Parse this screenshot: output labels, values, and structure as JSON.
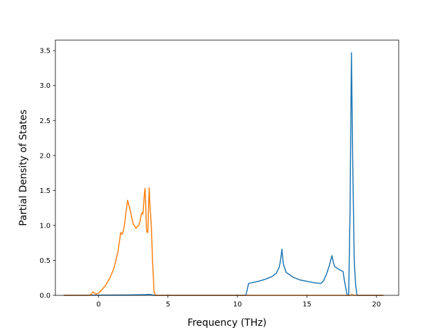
{
  "chart_data": {
    "type": "line",
    "title": "",
    "xlabel": "Frequency (THz)",
    "ylabel": "Partial Density of States",
    "xlim": [
      -3.1,
      21.6
    ],
    "ylim": [
      0,
      3.65
    ],
    "xticks": [
      0,
      5,
      10,
      15,
      20
    ],
    "xtick_labels": [
      "0",
      "5",
      "10",
      "15",
      "20"
    ],
    "yticks": [
      0,
      0.5,
      1.0,
      1.5,
      2.0,
      2.5,
      3.0,
      3.5
    ],
    "ytick_labels": [
      "0.0",
      "0.5",
      "1.0",
      "1.5",
      "2.0",
      "2.5",
      "3.0",
      "3.5"
    ],
    "grid": false,
    "legend": "none",
    "series": [
      {
        "color": "#1f77b4",
        "x": [
          -2.5,
          2.0,
          3.4,
          3.6,
          3.8,
          4.0,
          10.6,
          10.7,
          10.8,
          11.0,
          11.5,
          12.0,
          12.5,
          12.8,
          13.0,
          13.1,
          13.2,
          13.3,
          13.5,
          14.0,
          14.5,
          15.0,
          15.5,
          16.0,
          16.2,
          16.4,
          16.6,
          16.8,
          16.9,
          17.0,
          17.3,
          17.6,
          17.7,
          17.9,
          18.0,
          18.1,
          18.2,
          18.3,
          18.4,
          18.5,
          18.6,
          18.7,
          20.5
        ],
        "y": [
          0.0,
          0.005,
          0.01,
          0.015,
          0.01,
          0.0,
          0.0,
          0.08,
          0.17,
          0.18,
          0.2,
          0.23,
          0.27,
          0.32,
          0.4,
          0.5,
          0.66,
          0.45,
          0.33,
          0.26,
          0.22,
          0.2,
          0.18,
          0.17,
          0.21,
          0.3,
          0.42,
          0.57,
          0.47,
          0.41,
          0.37,
          0.34,
          0.2,
          0.0,
          0.0,
          1.2,
          3.47,
          1.8,
          0.5,
          0.15,
          0.0,
          0.0,
          0.0
        ]
      },
      {
        "color": "#ff7f0e",
        "x": [
          -2.5,
          -0.6,
          -0.4,
          -0.2,
          0.0,
          0.2,
          0.5,
          0.8,
          1.1,
          1.4,
          1.6,
          1.7,
          1.8,
          1.9,
          2.0,
          2.1,
          2.3,
          2.5,
          2.7,
          2.9,
          3.0,
          3.1,
          3.15,
          3.2,
          3.3,
          3.35,
          3.4,
          3.45,
          3.5,
          3.55,
          3.6,
          3.65,
          3.7,
          3.8,
          3.9,
          4.0,
          4.1,
          18.1,
          18.2,
          18.3,
          18.4,
          20.5
        ],
        "y": [
          0.0,
          0.0,
          0.05,
          0.02,
          0.03,
          0.07,
          0.14,
          0.24,
          0.38,
          0.62,
          0.9,
          0.87,
          0.93,
          1.05,
          1.22,
          1.36,
          1.2,
          1.02,
          0.96,
          1.0,
          1.07,
          1.17,
          1.18,
          1.16,
          1.44,
          1.53,
          1.3,
          0.95,
          0.9,
          0.9,
          1.25,
          1.54,
          1.3,
          1.0,
          0.45,
          0.05,
          0.0,
          0.0,
          0.01,
          0.01,
          0.0,
          0.0
        ]
      }
    ]
  }
}
